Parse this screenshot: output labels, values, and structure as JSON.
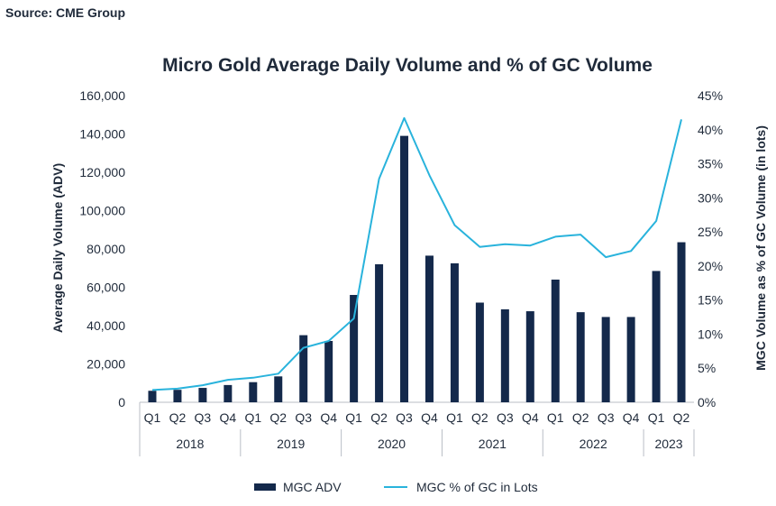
{
  "source_text": "Source: CME Group",
  "chart_data": {
    "type": "bar",
    "title": "Micro Gold Average Daily Volume and % of GC Volume",
    "ylabel": "Average Daily Volume (ADV)",
    "y2label": "MGC Volume as % of GC Volume (in lots)",
    "ylim": [
      0,
      160000
    ],
    "y2lim": [
      0,
      45
    ],
    "yticks": [
      0,
      20000,
      40000,
      60000,
      80000,
      100000,
      120000,
      140000,
      160000
    ],
    "yticklabels": [
      "0",
      "20,000",
      "40,000",
      "60,000",
      "80,000",
      "100,000",
      "120,000",
      "140,000",
      "160,000"
    ],
    "y2ticks": [
      0,
      5,
      10,
      15,
      20,
      25,
      30,
      35,
      40,
      45
    ],
    "y2ticklabels": [
      "0%",
      "5%",
      "10%",
      "15%",
      "20%",
      "25%",
      "30%",
      "35%",
      "40%",
      "45%"
    ],
    "categories": [
      "Q1",
      "Q2",
      "Q3",
      "Q4",
      "Q1",
      "Q2",
      "Q3",
      "Q4",
      "Q1",
      "Q2",
      "Q3",
      "Q4",
      "Q1",
      "Q2",
      "Q3",
      "Q4",
      "Q1",
      "Q2",
      "Q3",
      "Q4",
      "Q1",
      "Q2"
    ],
    "year_groups": [
      {
        "label": "2018",
        "count": 4
      },
      {
        "label": "2019",
        "count": 4
      },
      {
        "label": "2020",
        "count": 4
      },
      {
        "label": "2021",
        "count": 4
      },
      {
        "label": "2022",
        "count": 4
      },
      {
        "label": "2023",
        "count": 2
      }
    ],
    "series": [
      {
        "name": "MGC ADV",
        "type": "bar",
        "axis": "left",
        "color": "#14294b",
        "values": [
          6000,
          6500,
          7500,
          9000,
          10500,
          13500,
          35000,
          32000,
          56000,
          72000,
          139000,
          76500,
          72500,
          52000,
          48500,
          47500,
          64000,
          47000,
          44500,
          44500,
          68500,
          83500
        ]
      },
      {
        "name": "MGC % of GC in Lots",
        "type": "line",
        "axis": "right",
        "color": "#29b3dc",
        "values": [
          1.8,
          2.0,
          2.5,
          3.3,
          3.6,
          4.2,
          8.0,
          9.0,
          12.3,
          32.8,
          41.7,
          33.3,
          26.0,
          22.8,
          23.2,
          23.0,
          24.3,
          24.6,
          21.3,
          22.2,
          26.6,
          41.5
        ]
      }
    ],
    "legend_position": "bottom-center"
  }
}
